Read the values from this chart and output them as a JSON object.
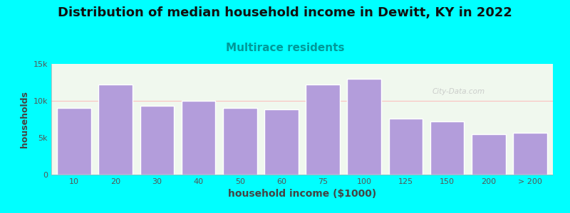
{
  "title": "Distribution of median household income in Dewitt, KY in 2022",
  "subtitle": "Multirace residents",
  "xlabel": "household income ($1000)",
  "ylabel": "households",
  "background_color": "#00FFFF",
  "plot_bg_color": "#f0f8ee",
  "bar_color": "#b39ddb",
  "bar_edge_color": "#ffffff",
  "categories": [
    "10",
    "20",
    "30",
    "40",
    "50",
    "60",
    "75",
    "100",
    "125",
    "150",
    "200",
    "> 200"
  ],
  "values": [
    9000,
    12200,
    9300,
    10000,
    9000,
    8800,
    12200,
    13000,
    7600,
    7200,
    5500,
    5700
  ],
  "ylim": [
    0,
    15000
  ],
  "yticks": [
    0,
    5000,
    10000,
    15000
  ],
  "ytick_labels": [
    "0",
    "5k",
    "10k",
    "15k"
  ],
  "title_fontsize": 13,
  "subtitle_fontsize": 11,
  "subtitle_color": "#009999",
  "axis_color": "#444444",
  "tick_color": "#555555",
  "watermark": "City-Data.com"
}
